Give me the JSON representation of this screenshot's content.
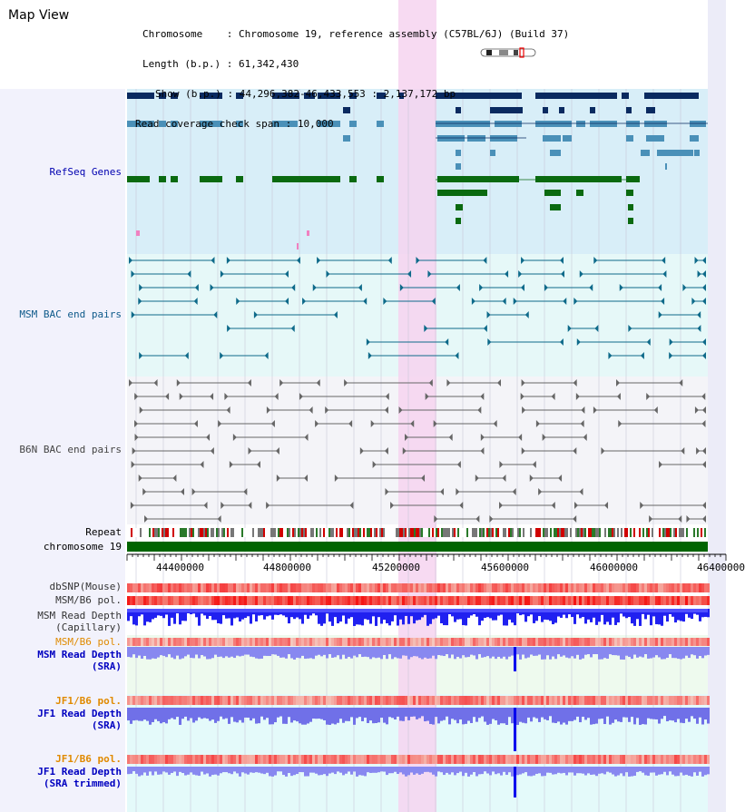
{
  "view_title": "Map View",
  "header": {
    "chromosome_label": "Chromosome",
    "chromosome_value": "Chromosome 19, reference assembly (C57BL/6J) (Build 37)",
    "length_label": "Length (b.p.)",
    "length_value": "61,342,430",
    "show_label": "Show (b.p.)",
    "show_value": "44,296,382-46,433,553 : 2,137,172 bp",
    "coverage_label": "Read coverage check span",
    "coverage_value": "10,000"
  },
  "tracks": {
    "refseq": "RefSeq Genes",
    "msm_bac": "MSM BAC end pairs",
    "b6n_bac": "B6N BAC end pairs",
    "repeat": "Repeat",
    "chromosome": "chromosome 19",
    "dbsnp": "dbSNP(Mouse)",
    "msm_b6_pol": "MSM/B6 pol.",
    "msm_depth_cap_1": "MSM Read Depth",
    "msm_depth_cap_2": "(Capillary)",
    "msm_b6_pol_2": "MSM/B6 pol.",
    "msm_depth_sra_1": "MSM Read Depth",
    "msm_depth_sra_2": "(SRA)",
    "jf1_b6_pol": "JF1/B6 pol.",
    "jf1_depth_sra_1": "JF1 Read Depth",
    "jf1_depth_sra_2": "(SRA)",
    "jf1_b6_pol_2": "JF1/B6 pol.",
    "jf1_depth_trim_1": "JF1 Read Depth",
    "jf1_depth_trim_2": "(SRA trimmed)"
  },
  "axis_ticks": [
    "44400000",
    "44800000",
    "45200000",
    "45600000",
    "46000000",
    "46400000"
  ],
  "colors": {
    "refseq_bg": "#d8eef8",
    "msm_bg": "#e6f8f8",
    "b6n_bg": "#f4f4f8",
    "highlight": "#f6d4f0",
    "gene_dark": "#0a2a60",
    "gene_mid": "#4a90b8",
    "gene_green": "#0a6a10",
    "msm_line": "#0e6a8a",
    "b6n_line": "#666666",
    "chromosome": "#006400",
    "depth_blue": "#0000ee"
  }
}
